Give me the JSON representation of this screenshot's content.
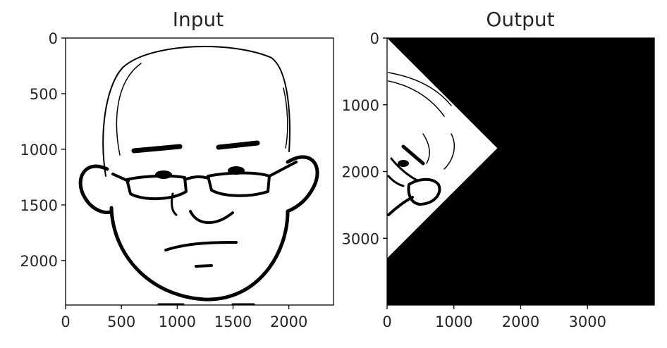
{
  "chart_data": [
    {
      "type": "image",
      "title": "Input",
      "xlabel": "",
      "ylabel": "",
      "xlim": [
        0,
        2400
      ],
      "ylim": [
        2400,
        0
      ],
      "xticks": [
        0,
        500,
        1000,
        1500,
        2000
      ],
      "yticks": [
        0,
        500,
        1000,
        1500,
        2000
      ],
      "xtick_labels": [
        "0",
        "500",
        "1000",
        "1500",
        "2000"
      ],
      "ytick_labels": [
        "0",
        "500",
        "1000",
        "1500",
        "2000"
      ],
      "image_content": "cartoon-face-with-glasses",
      "grid": false
    },
    {
      "type": "image",
      "title": "Output",
      "xlabel": "",
      "ylabel": "",
      "xlim": [
        0,
        4000
      ],
      "ylim": [
        4000,
        0
      ],
      "xticks": [
        0,
        1000,
        2000,
        3000
      ],
      "yticks": [
        0,
        1000,
        2000,
        3000
      ],
      "xtick_labels": [
        "0",
        "1000",
        "2000",
        "3000"
      ],
      "ytick_labels": [
        "0",
        "1000",
        "2000",
        "3000"
      ],
      "image_content": "rotated-face-fragment-in-white-triangle-on-black",
      "triangle_vertices": [
        [
          0,
          0
        ],
        [
          1650,
          1650
        ],
        [
          0,
          3300
        ]
      ],
      "background_color": "#000000",
      "grid": false
    }
  ]
}
